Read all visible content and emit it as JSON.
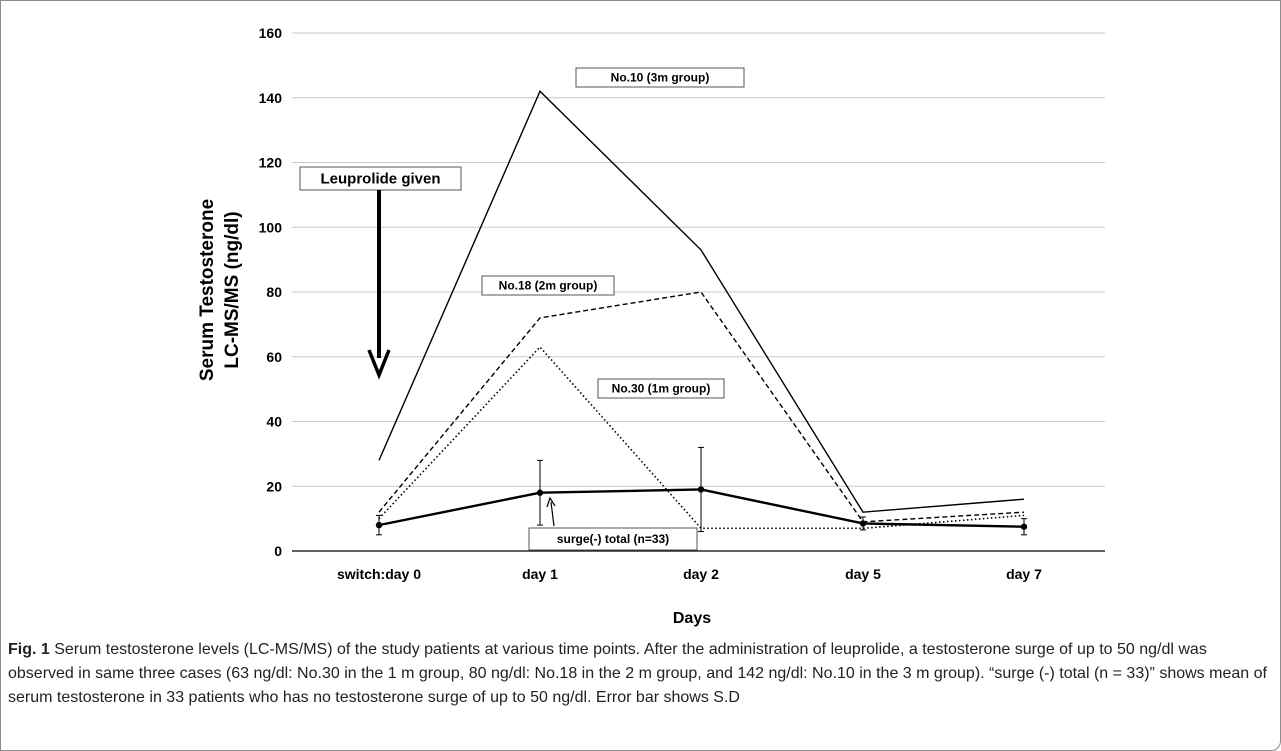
{
  "chart_data": {
    "type": "line",
    "categories": [
      "switch:day 0",
      "day 1",
      "day 2",
      "day 5",
      "day 7"
    ],
    "xlabel": "Days",
    "ylabel_lines": [
      "Serum Testosterone",
      "LC-MS/MS (ng/dl)"
    ],
    "ylim": [
      0,
      160
    ],
    "yticks": [
      0,
      20,
      40,
      60,
      80,
      100,
      120,
      140,
      160
    ],
    "grid": "horizontal",
    "series": [
      {
        "name": "No.10 (3m group)",
        "values": [
          28,
          142,
          93,
          12,
          16
        ],
        "style": "solid",
        "width": 1.4
      },
      {
        "name": "No.18 (2m group)",
        "values": [
          12,
          72,
          80,
          9,
          12
        ],
        "style": "dashed",
        "width": 1.4
      },
      {
        "name": "No.30 (1m group)",
        "values": [
          10,
          63,
          7,
          7,
          11
        ],
        "style": "dotted",
        "width": 1.6
      },
      {
        "name": "surge(-) total (n=33)",
        "values": [
          8,
          18,
          19,
          8.5,
          7.5
        ],
        "error": [
          3,
          10,
          13,
          2,
          2.5
        ],
        "style": "solid",
        "width": 2.4,
        "markers": true
      }
    ],
    "annotations": {
      "arrow_label": "Leuprolide given"
    }
  },
  "caption": {
    "label": "Fig. 1",
    "text": " Serum testosterone levels (LC-MS/MS) of the study patients at various time points. After the administration of leuprolide, a testosterone surge of up to 50 ng/dl was observed in same three cases (63 ng/dl: No.30 in the 1 m group, 80 ng/dl: No.18 in the 2 m group, and 142 ng/dl: No.10 in the 3 m group). “surge (-) total (n = 33)” shows mean of serum testosterone in 33 patients who has no testosterone surge of up to 50 ng/dl. Error bar shows S.D"
  },
  "colors": {
    "line": "#000000",
    "grid": "#c8c8c8",
    "box_border": "#555555"
  }
}
